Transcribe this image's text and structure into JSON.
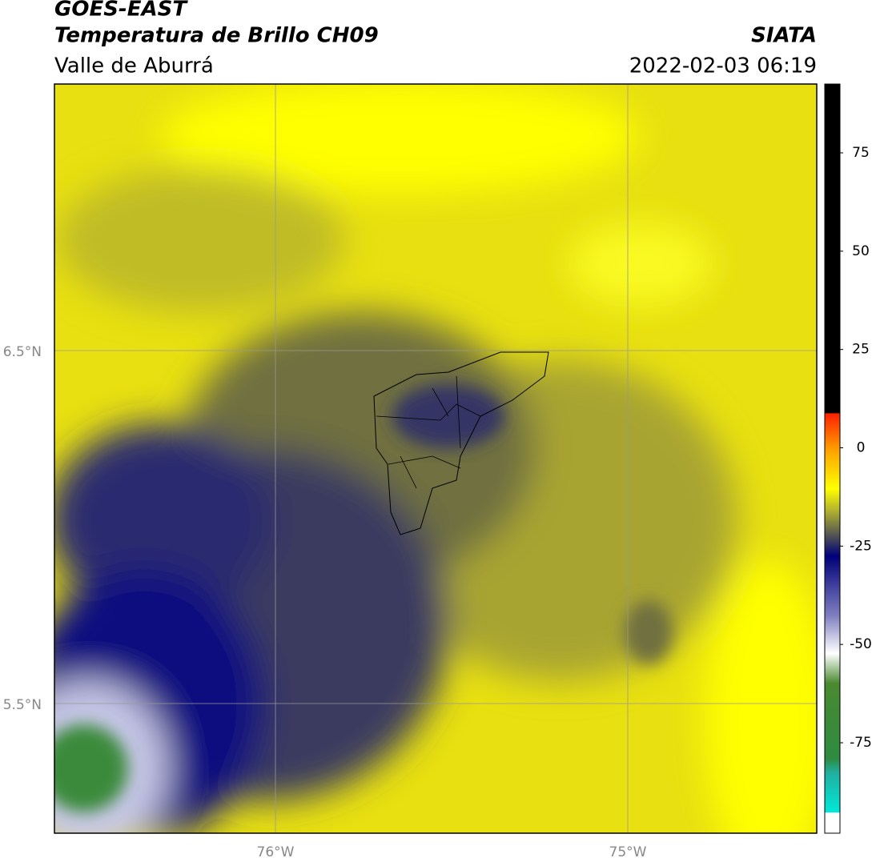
{
  "header": {
    "title": "GOES-EAST",
    "subtitle": "Temperatura de Brillo CH09",
    "region": "Valle de Aburrá",
    "source": "SIATA",
    "datetime": "2022-02-03 06:19"
  },
  "map": {
    "lat_labels": [
      "6.5°N",
      "5.5°N"
    ],
    "lon_labels": [
      "76°W",
      "75°W"
    ]
  },
  "colorbar": {
    "lim": [
      -98,
      92.5
    ],
    "ticks": [
      75,
      50,
      25,
      0,
      -25,
      -50,
      -75
    ]
  }
}
